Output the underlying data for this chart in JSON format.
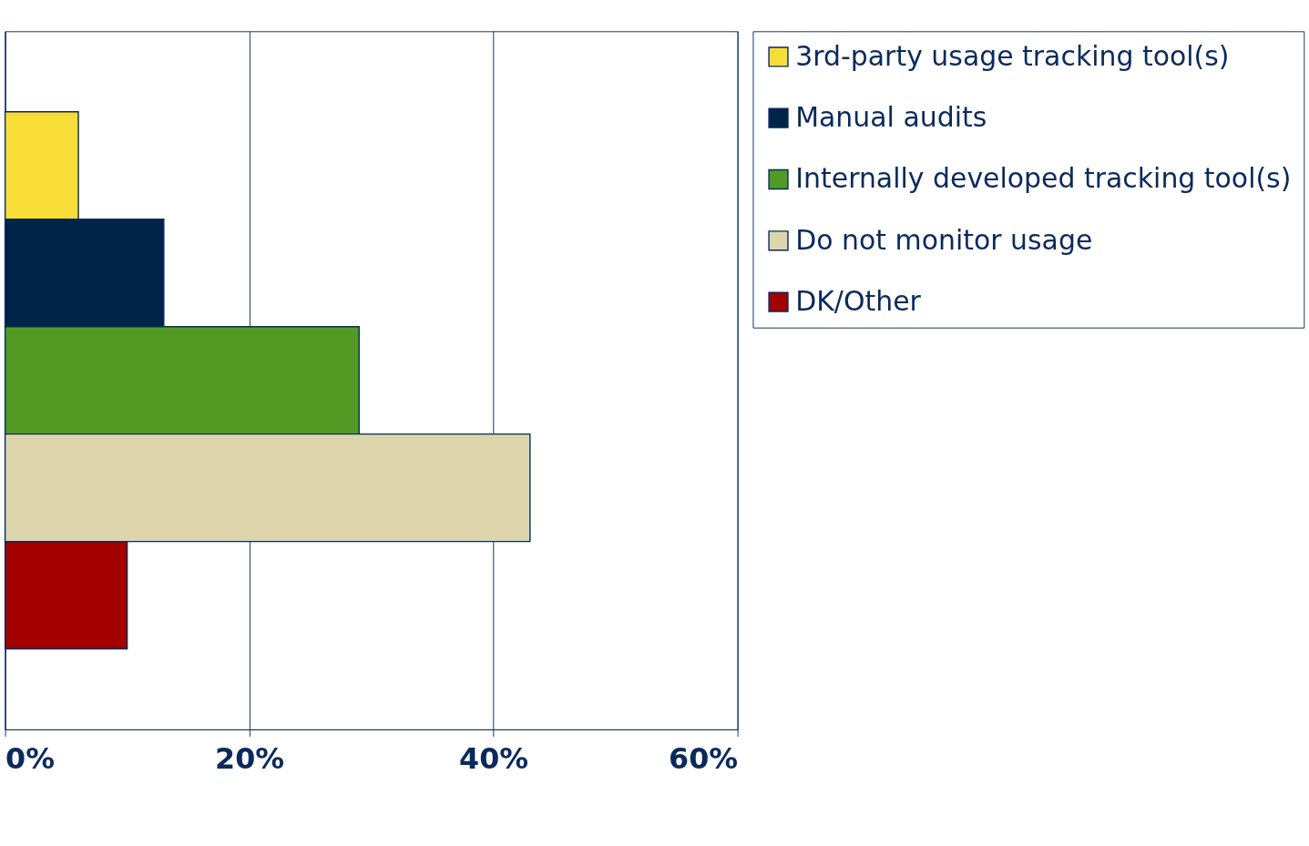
{
  "chart_data": {
    "type": "bar",
    "orientation": "horizontal",
    "categories": [
      null
    ],
    "series": [
      {
        "name": "3rd-party usage tracking tool(s)",
        "color": "#f9dd37",
        "values": [
          6
        ]
      },
      {
        "name": "Manual audits",
        "color": "#002348",
        "values": [
          13
        ]
      },
      {
        "name": "Internally developed tracking tool(s)",
        "color": "#529a24",
        "values": [
          29
        ]
      },
      {
        "name": "Do not monitor usage",
        "color": "#ddd6ad",
        "values": [
          43
        ]
      },
      {
        "name": "DK/Other",
        "color": "#a30000",
        "values": [
          10
        ]
      }
    ],
    "xlim": [
      0,
      60
    ],
    "xticks": [
      {
        "value": 0,
        "label": "0%"
      },
      {
        "value": 20,
        "label": "20%"
      },
      {
        "value": 40,
        "label": "40%"
      },
      {
        "value": 60,
        "label": "60%"
      }
    ],
    "grid": "x",
    "legend": "right",
    "tick_labels": "x"
  }
}
